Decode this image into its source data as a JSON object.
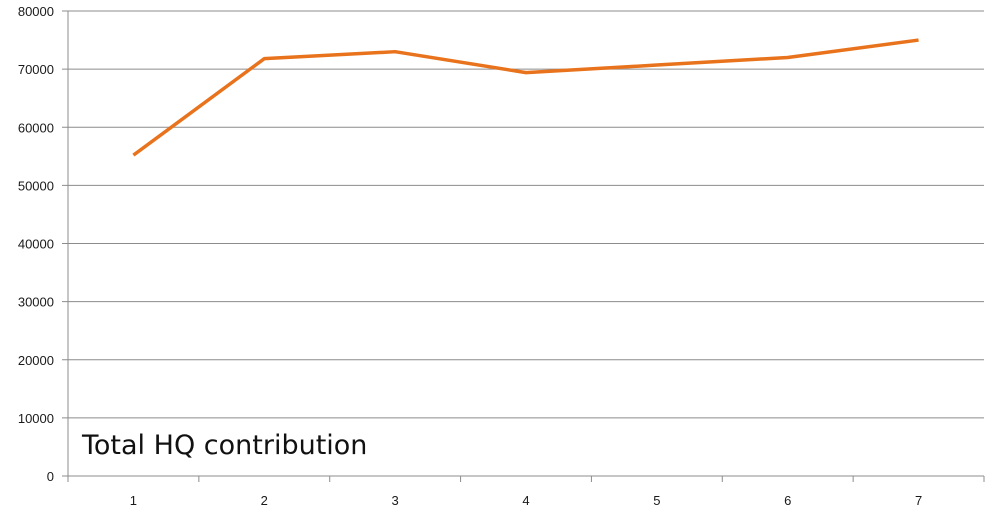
{
  "chart_data": {
    "type": "line",
    "categories": [
      "1",
      "2",
      "3",
      "4",
      "5",
      "6",
      "7"
    ],
    "series": [
      {
        "name": "Total HQ contribution",
        "values": [
          55200,
          71800,
          73000,
          69400,
          70700,
          72000,
          75000
        ],
        "color": "#e8731c"
      }
    ],
    "ylim": [
      0,
      80000
    ],
    "yticks": [
      "0",
      "10000",
      "20000",
      "30000",
      "40000",
      "50000",
      "60000",
      "70000",
      "80000"
    ],
    "xlabel": "",
    "ylabel": "",
    "grid": true,
    "legend_placement": "bottom-left inside plot"
  }
}
